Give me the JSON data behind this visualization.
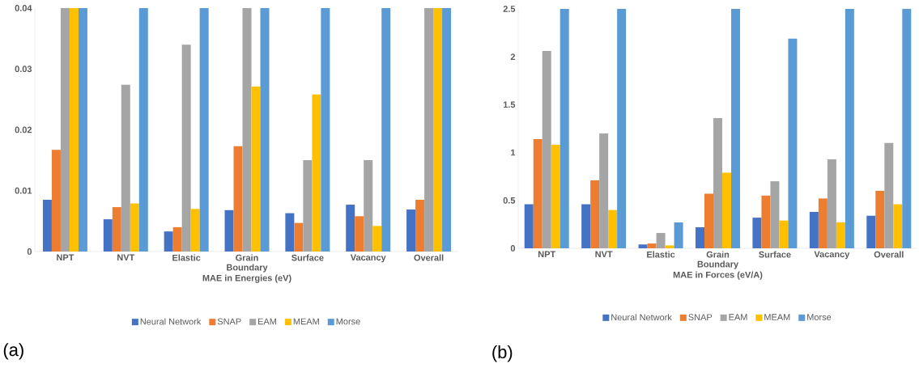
{
  "chart_data": [
    {
      "type": "bar",
      "xlabel": "MAE in Energies (eV)",
      "categories": [
        "NPT",
        "NVT",
        "Elastic",
        "Grain Boundary",
        "Surface",
        "Vacancy",
        "Overall"
      ],
      "series": [
        {
          "name": "Neural Network",
          "color": "#4472c4",
          "values": [
            0.0085,
            0.0053,
            0.0033,
            0.0068,
            0.0063,
            0.0077,
            0.0069
          ]
        },
        {
          "name": "SNAP",
          "color": "#ed7d31",
          "values": [
            0.0167,
            0.0073,
            0.004,
            0.0173,
            0.0047,
            0.0058,
            0.0085
          ]
        },
        {
          "name": "EAM",
          "color": "#a5a5a5",
          "values": [
            0.04,
            0.0274,
            0.034,
            0.04,
            0.015,
            0.015,
            0.04
          ]
        },
        {
          "name": "MEAM",
          "color": "#ffc000",
          "values": [
            0.04,
            0.0079,
            0.007,
            0.0271,
            0.0258,
            0.0042,
            0.04
          ]
        },
        {
          "name": "Morse",
          "color": "#5b9bd5",
          "values": [
            0.04,
            0.04,
            0.04,
            0.04,
            0.04,
            0.04,
            0.04
          ]
        }
      ],
      "ylim": [
        0,
        0.04
      ],
      "yticks": [
        0,
        0.01,
        0.02,
        0.03,
        0.04
      ],
      "grid": false,
      "legend": "bottom",
      "annotations": [
        "(a)"
      ]
    },
    {
      "type": "bar",
      "xlabel": "MAE in Forces (eV/A)",
      "categories": [
        "NPT",
        "NVT",
        "Elastic",
        "Grain Boundary",
        "Surface",
        "Vacancy",
        "Overall"
      ],
      "series": [
        {
          "name": "Neural Network",
          "color": "#4472c4",
          "values": [
            0.46,
            0.46,
            0.04,
            0.22,
            0.32,
            0.38,
            0.34
          ]
        },
        {
          "name": "SNAP",
          "color": "#ed7d31",
          "values": [
            1.14,
            0.71,
            0.05,
            0.57,
            0.55,
            0.52,
            0.6
          ]
        },
        {
          "name": "EAM",
          "color": "#a5a5a5",
          "values": [
            2.06,
            1.2,
            0.16,
            1.36,
            0.7,
            0.93,
            1.1
          ]
        },
        {
          "name": "MEAM",
          "color": "#ffc000",
          "values": [
            1.08,
            0.4,
            0.03,
            0.79,
            0.29,
            0.27,
            0.46
          ]
        },
        {
          "name": "Morse",
          "color": "#5b9bd5",
          "values": [
            2.5,
            2.5,
            0.27,
            2.5,
            2.19,
            2.5,
            2.5
          ]
        }
      ],
      "ylim": [
        0,
        2.5
      ],
      "yticks": [
        0,
        0.5,
        1,
        1.5,
        2,
        2.5
      ],
      "grid": false,
      "legend": "bottom",
      "annotations": [
        "(b)"
      ]
    }
  ]
}
